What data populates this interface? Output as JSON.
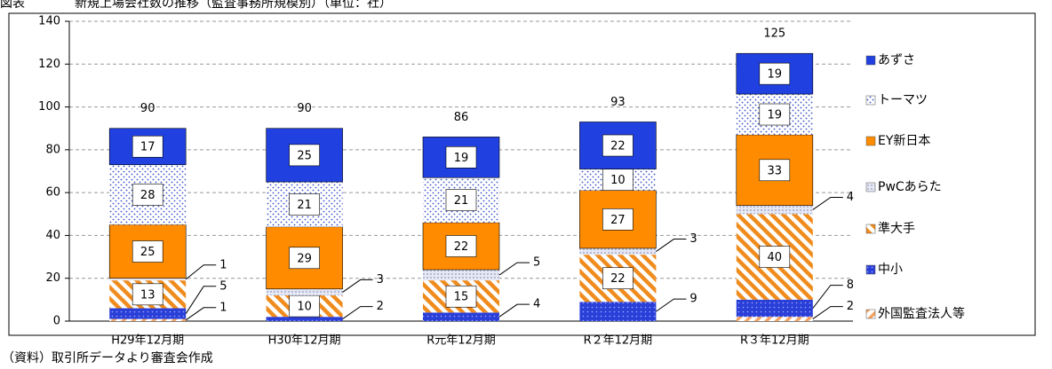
{
  "chart_data": {
    "type": "stacked_bar",
    "title": "図表　　　　新規上場会社数の推移（監査事務所規模別）（単位：社）",
    "source": "（資料）取引所データより審査会作成",
    "categories": [
      "H29年12月期",
      "H30年12月期",
      "R元年12月期",
      "R２年12月期",
      "R３年12月期"
    ],
    "series": [
      {
        "name": "外国監査法人等",
        "color": "#f4a460",
        "values": [
          1,
          0,
          0,
          0,
          2
        ]
      },
      {
        "name": "中小",
        "color": "#2a3fd8",
        "values": [
          5,
          2,
          4,
          9,
          8
        ]
      },
      {
        "name": "準大手",
        "color": "#f08c1e",
        "values": [
          13,
          10,
          15,
          22,
          40
        ]
      },
      {
        "name": "PwCあらた",
        "color": "#9aa3c8",
        "values": [
          1,
          3,
          5,
          3,
          4
        ]
      },
      {
        "name": "EY新日本",
        "color": "#ff8c00",
        "values": [
          25,
          29,
          22,
          27,
          33
        ]
      },
      {
        "name": "トーマツ",
        "color": "#3a4fc8",
        "values": [
          28,
          21,
          21,
          10,
          19
        ]
      },
      {
        "name": "あずさ",
        "color": "#2040e0",
        "values": [
          17,
          25,
          19,
          22,
          19
        ]
      }
    ],
    "totals": [
      90,
      90,
      86,
      93,
      125
    ],
    "ylim": [
      0,
      140
    ],
    "yticks": [
      0,
      20,
      40,
      60,
      80,
      100,
      120,
      140
    ],
    "grid": true
  }
}
